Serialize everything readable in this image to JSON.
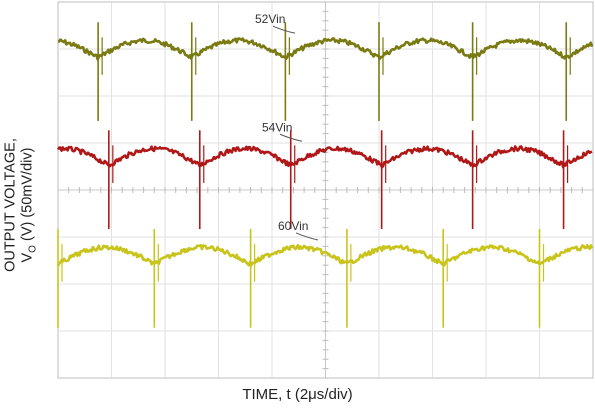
{
  "chart_data": {
    "type": "line",
    "title": "",
    "xlabel": "TIME, t (2μs/div)",
    "ylabel_line1": "OUTPUT VOLTAGE,",
    "ylabel_line2_prefix": "V",
    "ylabel_line2_sub": "O",
    "ylabel_line2_suffix": " (V) (50mV/div)",
    "grid": true,
    "x_divisions": 10,
    "y_divisions": 8,
    "x_unit": "μs",
    "x_per_div": 2,
    "y_per_div_mV": 50,
    "series": [
      {
        "name": "52Vin",
        "color": "#7a7a12",
        "offset_div": 1.0,
        "period_us": 3.5,
        "first_spike_us": 1.5
      },
      {
        "name": "54Vin",
        "color": "#b01818",
        "offset_div": 3.3,
        "period_us": 3.4,
        "first_spike_us": 1.9
      },
      {
        "name": "60Vin",
        "color": "#c9c41c",
        "offset_div": 5.4,
        "period_us": 3.6,
        "first_spike_us": 0.0
      }
    ]
  }
}
